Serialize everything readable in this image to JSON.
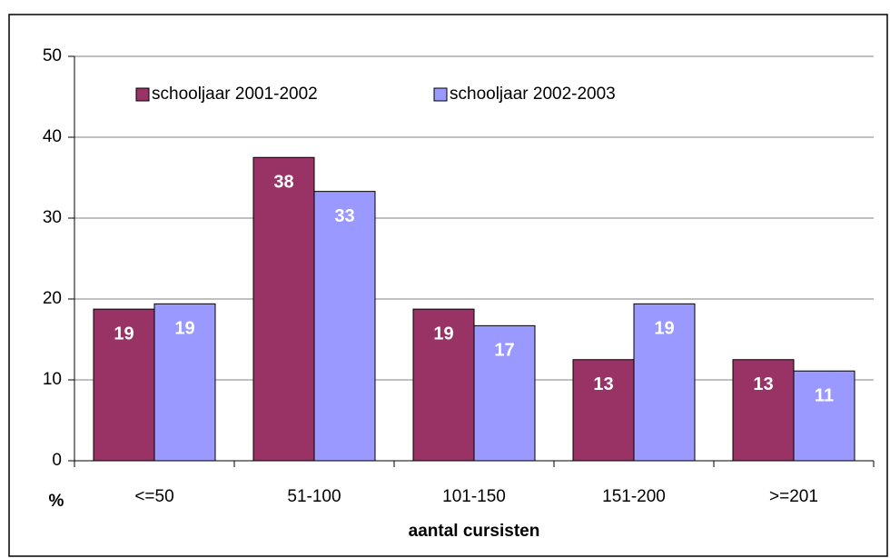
{
  "chart_data": {
    "type": "bar",
    "xlabel": "aantal cursisten",
    "ylabel": "%",
    "categories": [
      "<=50",
      "51-100",
      "101-150",
      "151-200",
      ">=201"
    ],
    "series": [
      {
        "name": "schooljaar 2001-2002",
        "color": "#993366",
        "values": [
          18.75,
          37.5,
          18.75,
          12.5,
          12.5
        ],
        "value_labels": [
          "19",
          "38",
          "19",
          "13",
          "13"
        ]
      },
      {
        "name": "schooljaar 2002-2003",
        "color": "#9999ff",
        "values": [
          19.4,
          33.3,
          16.7,
          19.4,
          11.1
        ],
        "value_labels": [
          "19",
          "33",
          "17",
          "19",
          "11"
        ]
      }
    ],
    "ylim": [
      0,
      50
    ],
    "yticks": [
      0,
      10,
      20,
      30,
      40,
      50
    ],
    "grid": true,
    "legend": "top-left"
  }
}
